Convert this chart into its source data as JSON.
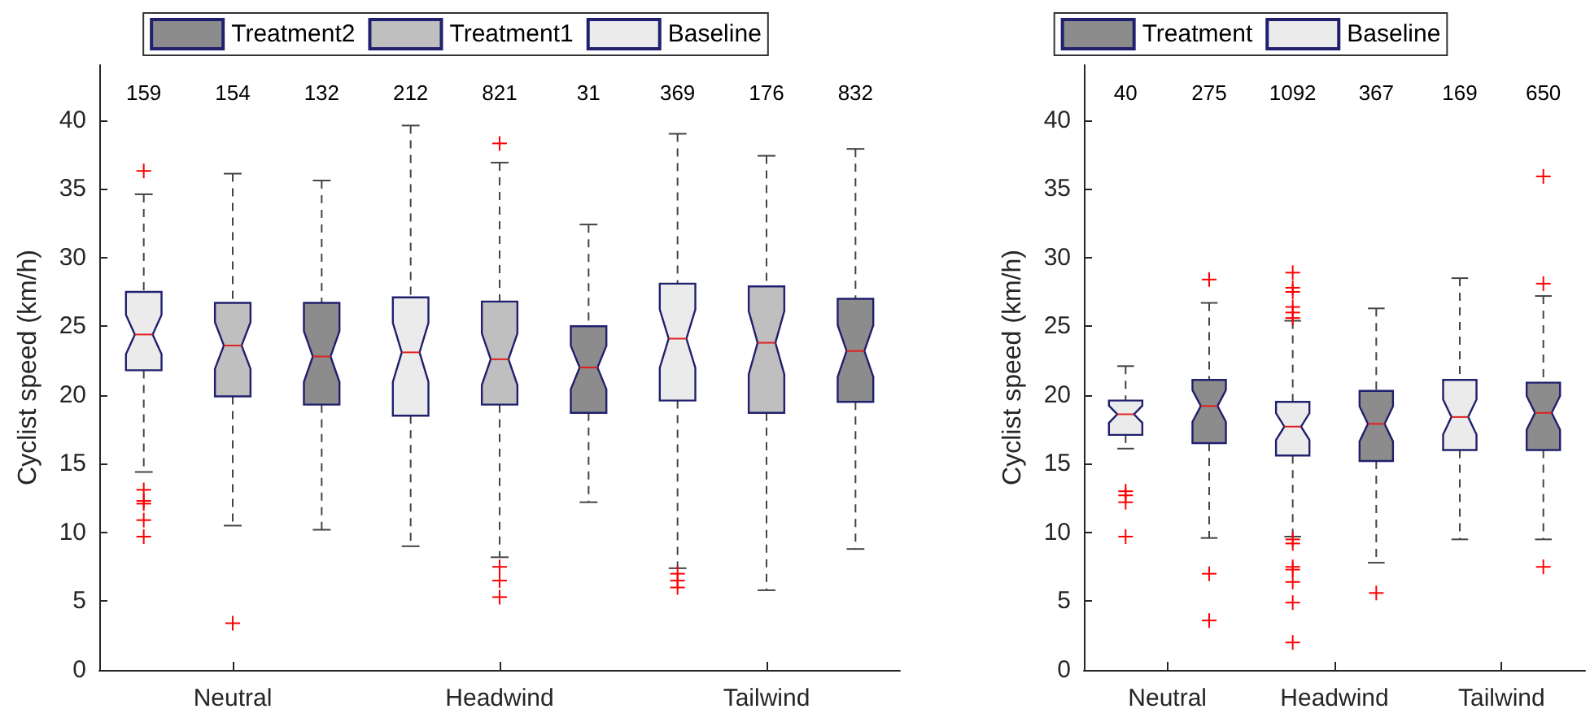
{
  "chart_data": [
    {
      "type": "box",
      "ylabel": "Cyclist speed (km/h)",
      "categories": [
        "Neutral",
        "Headwind",
        "Tailwind"
      ],
      "ylim": [
        0,
        44
      ],
      "yticks": [
        0,
        5,
        10,
        15,
        20,
        25,
        30,
        35,
        40
      ],
      "legend": "top",
      "marker": "cross",
      "series": [
        {
          "name": "Baseline",
          "color": "#ebebeb",
          "value_labels": [
            "159",
            "212",
            "369"
          ],
          "boxes": [
            {
              "low": 14.4,
              "q1": 21.8,
              "median": 24.4,
              "q3": 27.5,
              "high": 34.6,
              "outliers": [
                36.3,
                13.1,
                12.3,
                12.1,
                10.9,
                9.7
              ]
            },
            {
              "low": 9.0,
              "q1": 18.5,
              "median": 23.1,
              "q3": 27.1,
              "high": 39.6
            },
            {
              "low": 7.4,
              "q1": 19.6,
              "median": 24.1,
              "q3": 28.1,
              "high": 39.0,
              "outliers": [
                7.0,
                6.5,
                6.0
              ]
            }
          ]
        },
        {
          "name": "Treatment1",
          "color": "#bfbfbf",
          "value_labels": [
            "154",
            "821",
            "176"
          ],
          "boxes": [
            {
              "low": 10.5,
              "q1": 19.9,
              "median": 23.6,
              "q3": 26.7,
              "high": 36.1,
              "outliers": [
                3.4
              ]
            },
            {
              "low": 8.2,
              "q1": 19.3,
              "median": 22.6,
              "q3": 26.8,
              "high": 36.9,
              "outliers": [
                38.3,
                7.5,
                6.5,
                5.3
              ]
            },
            {
              "low": 5.8,
              "q1": 18.7,
              "median": 23.8,
              "q3": 27.9,
              "high": 37.4
            }
          ]
        },
        {
          "name": "Treatment2",
          "color": "#8c8c8c",
          "value_labels": [
            "132",
            "31",
            "832"
          ],
          "boxes": [
            {
              "low": 10.2,
              "q1": 19.3,
              "median": 22.8,
              "q3": 26.7,
              "high": 35.6
            },
            {
              "low": 12.2,
              "q1": 18.7,
              "median": 22.0,
              "q3": 25.0,
              "high": 32.4
            },
            {
              "low": 8.8,
              "q1": 19.5,
              "median": 23.2,
              "q3": 27.0,
              "high": 37.9
            }
          ]
        }
      ]
    },
    {
      "type": "box",
      "ylabel": "Cyclist speed (km/h)",
      "categories": [
        "Neutral",
        "Headwind",
        "Tailwind"
      ],
      "ylim": [
        0,
        44
      ],
      "yticks": [
        0,
        5,
        10,
        15,
        20,
        25,
        30,
        35,
        40
      ],
      "legend": "top",
      "marker": "cross",
      "series": [
        {
          "name": "Baseline",
          "color": "#ebebeb",
          "value_labels": [
            "40",
            "1092",
            "169"
          ],
          "boxes": [
            {
              "low": 16.1,
              "q1": 17.1,
              "median": 18.6,
              "q3": 19.6,
              "high": 22.1,
              "outliers": [
                13.0,
                12.7,
                12.2,
                9.7
              ]
            },
            {
              "low": 9.7,
              "q1": 15.6,
              "median": 17.7,
              "q3": 19.5,
              "high": 25.4,
              "outliers": [
                28.9,
                27.8,
                27.5,
                26.4,
                26.0,
                25.6,
                9.5,
                9.2,
                7.5,
                7.3,
                6.4,
                4.9,
                2.0
              ]
            },
            {
              "low": 9.5,
              "q1": 16.0,
              "median": 18.4,
              "q3": 21.1,
              "high": 28.5
            }
          ]
        },
        {
          "name": "Treatment",
          "color": "#8c8c8c",
          "value_labels": [
            "275",
            "367",
            "650"
          ],
          "boxes": [
            {
              "low": 9.6,
              "q1": 16.5,
              "median": 19.2,
              "q3": 21.1,
              "high": 26.7,
              "outliers": [
                28.4,
                7.0,
                3.6
              ]
            },
            {
              "low": 7.8,
              "q1": 15.2,
              "median": 17.9,
              "q3": 20.3,
              "high": 26.3,
              "outliers": [
                5.6
              ]
            },
            {
              "low": 9.5,
              "q1": 16.0,
              "median": 18.7,
              "q3": 20.9,
              "high": 27.2,
              "outliers": [
                35.9,
                28.1,
                7.5
              ]
            }
          ]
        }
      ]
    }
  ]
}
